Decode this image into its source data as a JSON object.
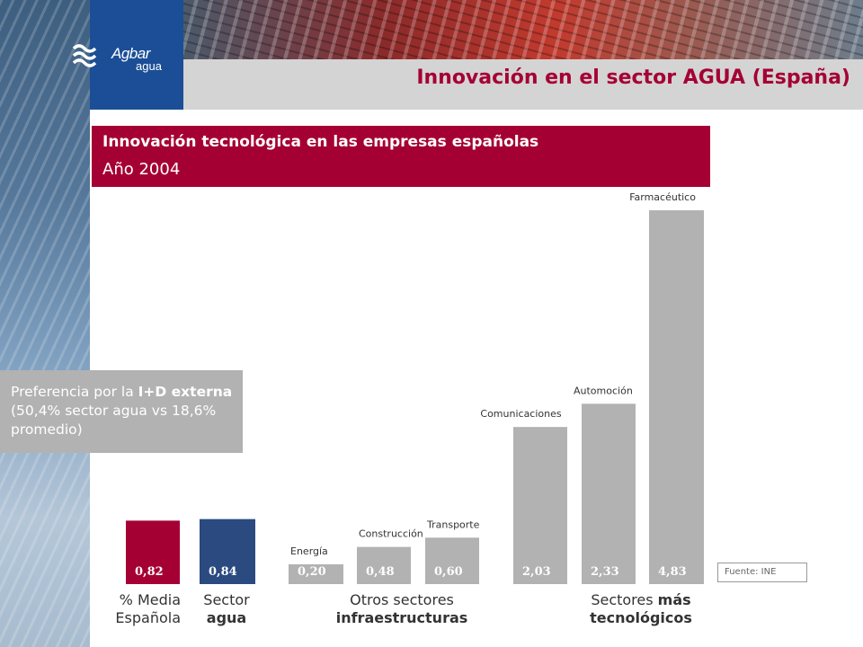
{
  "header": {
    "logo_word1": "Agbar",
    "logo_word2": "agua",
    "title": "Innovación en el sector AGUA (España)"
  },
  "panel": {
    "subtitle": "Innovación tecnológica en las empresas españolas",
    "year": "Año 2004"
  },
  "callout": {
    "part1": "Preferencia por la ",
    "bold1": "I+D externa",
    "part2": " (50,4% sector agua vs 18,6% promedio)"
  },
  "source": "Fuente: INE",
  "groups": {
    "media_line1": "% Media",
    "media_line2": "Española",
    "agua_line1": "Sector",
    "agua_line2": "agua",
    "infra_line1": "Otros sectores",
    "infra_line2": "infraestructuras",
    "tech_line1_a": "Sectores ",
    "tech_line1_b": "más",
    "tech_line2": "tecnológicos"
  },
  "colors": {
    "brand_red": "#a50034",
    "brand_blue": "#1b4e96",
    "bar_blue": "#2a4a80",
    "bar_grey": "#b2b2b2"
  },
  "chart_data": {
    "type": "bar",
    "title": "Innovación tecnológica en las empresas españolas",
    "subtitle": "Año 2004",
    "ylim": [
      0,
      4.83
    ],
    "categories": [
      "% Media Española",
      "Sector agua",
      "Energía",
      "Construcción",
      "Transporte",
      "Comunicaciones",
      "Automoción",
      "Farmacéutico"
    ],
    "category_labels": [
      "",
      "",
      "Energía",
      "Construcción",
      "Transporte",
      "Comunicaciones",
      "Automoción",
      "Farmacéutico"
    ],
    "values": [
      0.82,
      0.84,
      0.2,
      0.48,
      0.6,
      2.03,
      2.33,
      4.83
    ],
    "value_labels": [
      "0,82",
      "0,84",
      "0,20",
      "0,48",
      "0,60",
      "2,03",
      "2,33",
      "4,83"
    ],
    "bar_colors": [
      "#a50034",
      "#2a4a80",
      "#b2b2b2",
      "#b2b2b2",
      "#b2b2b2",
      "#b2b2b2",
      "#b2b2b2",
      "#b2b2b2"
    ],
    "grid": false
  }
}
